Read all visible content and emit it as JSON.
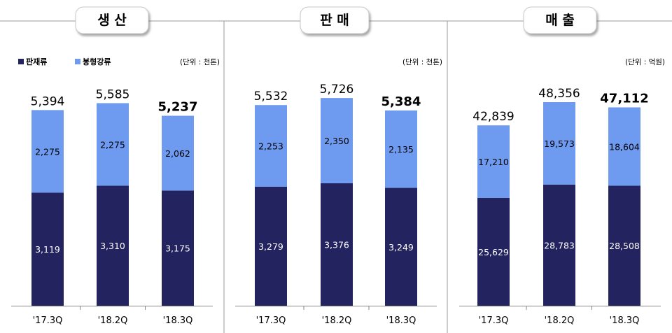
{
  "legend": [
    {
      "label": "판재류",
      "color": "#23235f"
    },
    {
      "label": "봉형강류",
      "color": "#6e9af0"
    }
  ],
  "chart_data": [
    {
      "type": "bar",
      "stacked": true,
      "title": "생 산",
      "unit": "(단위 : 천톤)",
      "categories": [
        "'17.3Q",
        "'18.2Q",
        "'18.3Q"
      ],
      "series": [
        {
          "name": "판재류",
          "values": [
            3119,
            3310,
            3175
          ]
        },
        {
          "name": "봉형강류",
          "values": [
            2275,
            2275,
            2062
          ]
        }
      ],
      "totals": [
        5394,
        5585,
        5237
      ],
      "ylim": [
        0,
        6500
      ]
    },
    {
      "type": "bar",
      "stacked": true,
      "title": "판 매",
      "unit": "(단위 : 천톤)",
      "categories": [
        "'17.3Q",
        "'18.2Q",
        "'18.3Q"
      ],
      "series": [
        {
          "name": "판재류",
          "values": [
            3279,
            3376,
            3249
          ]
        },
        {
          "name": "봉형강류",
          "values": [
            2253,
            2350,
            2135
          ]
        }
      ],
      "totals": [
        5532,
        5726,
        5384
      ],
      "ylim": [
        0,
        6500
      ]
    },
    {
      "type": "bar",
      "stacked": true,
      "title": "매 출",
      "unit": "(단위 : 억원)",
      "categories": [
        "'17.3Q",
        "'18.2Q",
        "'18.3Q"
      ],
      "series": [
        {
          "name": "판재류",
          "values": [
            25629,
            28783,
            28508
          ]
        },
        {
          "name": "봉형강류",
          "values": [
            17210,
            19573,
            18604
          ]
        }
      ],
      "totals": [
        42839,
        48356,
        47112
      ],
      "ylim": [
        0,
        56000
      ]
    }
  ]
}
